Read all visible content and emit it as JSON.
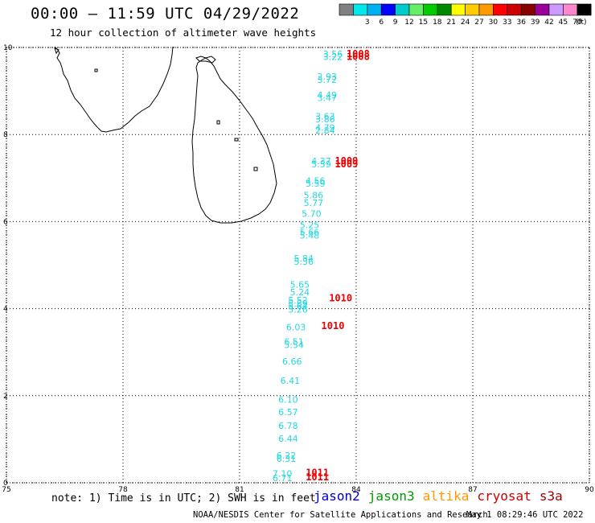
{
  "title": "00:00 – 11:59 UTC 04/29/2022",
  "subtitle": "12 hour collection of altimeter wave heights",
  "footer": {
    "note": "note: 1) Time is in UTC; 2) SWH is in feet",
    "credit": "NOAA/NESDIS Center for Satellite Applications and Research",
    "timestamp": "May  1 08:29:46 UTC 2022"
  },
  "satellites": [
    {
      "name": "jason2",
      "color": "#0000cc"
    },
    {
      "name": "jason3",
      "color": "#009900"
    },
    {
      "name": "altika",
      "color": "#ff9900"
    },
    {
      "name": "cryosat",
      "color": "#cc0000"
    },
    {
      "name": "s3a",
      "color": "#990000"
    }
  ],
  "legend": {
    "unit": "(ft)",
    "bins": [
      {
        "label": "",
        "color": "#808080"
      },
      {
        "label": "3",
        "color": "#00e8e8"
      },
      {
        "label": "6",
        "color": "#00b0f0"
      },
      {
        "label": "9",
        "color": "#0000ff"
      },
      {
        "label": "12",
        "color": "#00cccc"
      },
      {
        "label": "15",
        "color": "#66ee66"
      },
      {
        "label": "18",
        "color": "#00cc00"
      },
      {
        "label": "21",
        "color": "#008800"
      },
      {
        "label": "24",
        "color": "#ffff00"
      },
      {
        "label": "27",
        "color": "#ffcc00"
      },
      {
        "label": "30",
        "color": "#ff9900"
      },
      {
        "label": "33",
        "color": "#ff0000"
      },
      {
        "label": "36",
        "color": "#cc0000"
      },
      {
        "label": "39",
        "color": "#880000"
      },
      {
        "label": "42",
        "color": "#990099"
      },
      {
        "label": "45",
        "color": "#cc99ff"
      },
      {
        "label": "70",
        "color": "#ff88cc"
      },
      {
        "label": "",
        "color": "#000000"
      }
    ]
  },
  "map": {
    "lon_range": [
      75,
      90
    ],
    "lat_range": [
      0,
      10
    ],
    "x_ticks": [
      75,
      78,
      81,
      84,
      87,
      90
    ],
    "y_ticks": [
      0,
      2,
      4,
      6,
      8,
      10
    ],
    "x_labels": [
      "75",
      "78",
      "81",
      "84",
      "87",
      "90"
    ],
    "y_labels": [
      "0",
      "2",
      "4",
      "6",
      "8",
      "10"
    ],
    "grid": "dotted",
    "wave_color": "#22d8e0",
    "time_color": "#ee0000"
  },
  "wave_heights": [
    {
      "lon": 83.4,
      "lat": 9.78,
      "text": "3.56"
    },
    {
      "lon": 83.4,
      "lat": 9.71,
      "text": "3.22"
    },
    {
      "lon": 83.25,
      "lat": 9.26,
      "text": "2.93"
    },
    {
      "lon": 83.25,
      "lat": 9.19,
      "text": "3.72"
    },
    {
      "lon": 83.25,
      "lat": 8.84,
      "text": "4.49"
    },
    {
      "lon": 83.25,
      "lat": 8.77,
      "text": "3.47"
    },
    {
      "lon": 83.2,
      "lat": 8.35,
      "text": "3.63"
    },
    {
      "lon": 83.2,
      "lat": 8.28,
      "text": "3.86"
    },
    {
      "lon": 83.2,
      "lat": 8.09,
      "text": "4.79"
    },
    {
      "lon": 83.2,
      "lat": 8.02,
      "text": "2.84"
    },
    {
      "lon": 83.1,
      "lat": 7.32,
      "text": "4.37"
    },
    {
      "lon": 83.1,
      "lat": 7.25,
      "text": "5.59"
    },
    {
      "lon": 82.95,
      "lat": 6.87,
      "text": "4.56"
    },
    {
      "lon": 82.95,
      "lat": 6.8,
      "text": "5.59"
    },
    {
      "lon": 82.9,
      "lat": 6.53,
      "text": "5.86"
    },
    {
      "lon": 82.9,
      "lat": 6.36,
      "text": "5.77"
    },
    {
      "lon": 82.85,
      "lat": 6.11,
      "text": "5.70"
    },
    {
      "lon": 82.8,
      "lat": 5.85,
      "text": "5.25"
    },
    {
      "lon": 82.8,
      "lat": 5.68,
      "text": "5.66"
    },
    {
      "lon": 82.8,
      "lat": 5.61,
      "text": "5.48"
    },
    {
      "lon": 82.65,
      "lat": 5.08,
      "text": "5.84"
    },
    {
      "lon": 82.65,
      "lat": 5.01,
      "text": "5.36"
    },
    {
      "lon": 82.55,
      "lat": 4.48,
      "text": "5.65"
    },
    {
      "lon": 82.55,
      "lat": 4.31,
      "text": "5.24"
    },
    {
      "lon": 82.5,
      "lat": 4.12,
      "text": "5.52"
    },
    {
      "lon": 82.5,
      "lat": 4.05,
      "text": "5.89"
    },
    {
      "lon": 82.5,
      "lat": 3.98,
      "text": "5.64"
    },
    {
      "lon": 82.5,
      "lat": 3.91,
      "text": "5.26"
    },
    {
      "lon": 82.45,
      "lat": 3.5,
      "text": "6.03"
    },
    {
      "lon": 82.4,
      "lat": 3.17,
      "text": "6.51"
    },
    {
      "lon": 82.4,
      "lat": 3.1,
      "text": "5.54"
    },
    {
      "lon": 82.35,
      "lat": 2.72,
      "text": "6.66"
    },
    {
      "lon": 82.3,
      "lat": 2.27,
      "text": "6.41"
    },
    {
      "lon": 82.25,
      "lat": 1.84,
      "text": "6.10"
    },
    {
      "lon": 82.25,
      "lat": 1.55,
      "text": "6.57"
    },
    {
      "lon": 82.25,
      "lat": 1.24,
      "text": "6.78"
    },
    {
      "lon": 82.25,
      "lat": 0.94,
      "text": "6.44"
    },
    {
      "lon": 82.2,
      "lat": 0.55,
      "text": "6.22"
    },
    {
      "lon": 82.2,
      "lat": 0.48,
      "text": "6.31"
    },
    {
      "lon": 82.1,
      "lat": 0.14,
      "text": "7.10"
    },
    {
      "lon": 82.1,
      "lat": 0.04,
      "text": "6.71"
    }
  ],
  "time_stamps": [
    {
      "lon": 84.05,
      "lat": 9.78,
      "text": "1008"
    },
    {
      "lon": 84.05,
      "lat": 9.71,
      "text": "1008"
    },
    {
      "lon": 83.75,
      "lat": 7.32,
      "text": "1009"
    },
    {
      "lon": 83.75,
      "lat": 7.25,
      "text": "1009"
    },
    {
      "lon": 83.6,
      "lat": 4.17,
      "text": "1010"
    },
    {
      "lon": 83.4,
      "lat": 3.53,
      "text": "1010"
    },
    {
      "lon": 83.0,
      "lat": 0.16,
      "text": "1011"
    },
    {
      "lon": 83.0,
      "lat": 0.06,
      "text": "1011"
    }
  ]
}
